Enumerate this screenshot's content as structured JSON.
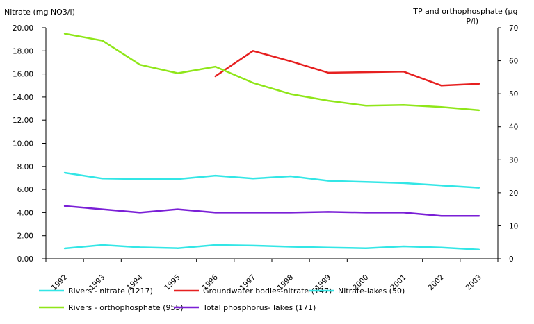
{
  "chart_data": {
    "type": "line",
    "title": "",
    "ylabel_left": "Nitrate (mg NO3/l)",
    "ylabel_right_lines": [
      "TP and orthophosphate (µg",
      "P/l)"
    ],
    "x": [
      "1992",
      "1993",
      "1994",
      "1995",
      "1996",
      "1997",
      "1998",
      "1999",
      "2000",
      "2001",
      "2002",
      "2003"
    ],
    "ylim_left": [
      0,
      20
    ],
    "ylim_right": [
      0,
      70
    ],
    "yticks_left": [
      "0.00",
      "2.00",
      "4.00",
      "6.00",
      "8.00",
      "10.00",
      "12.00",
      "14.00",
      "16.00",
      "18.00",
      "20.00"
    ],
    "yticks_right": [
      "0",
      "10",
      "20",
      "30",
      "40",
      "50",
      "60",
      "70"
    ],
    "grid": false,
    "legend_position": "bottom",
    "series": [
      {
        "name": "Rivers - nitrate (1217)",
        "axis": "left",
        "color": "#33e6e6",
        "values": [
          7.45,
          6.95,
          6.9,
          6.9,
          7.2,
          6.95,
          7.15,
          6.75,
          6.65,
          6.55,
          6.35,
          6.15
        ]
      },
      {
        "name": "Groundwater bodies-nitrate (147)",
        "axis": "left",
        "color": "#e62020",
        "values": [
          null,
          null,
          null,
          null,
          15.8,
          18.0,
          17.1,
          16.1,
          16.15,
          16.2,
          15.0,
          15.15
        ]
      },
      {
        "name": "Nitrate-lakes (50)",
        "axis": "left",
        "color": "#33e6e6",
        "values": [
          0.9,
          1.2,
          1.0,
          0.92,
          1.2,
          1.15,
          1.05,
          0.97,
          0.92,
          1.08,
          0.97,
          0.8
        ]
      },
      {
        "name": "Rivers - orthophosphate (955)",
        "axis": "right",
        "color": "#8fe619",
        "values": [
          68.2,
          66.1,
          58.8,
          56.2,
          58.2,
          53.3,
          49.9,
          47.9,
          46.4,
          46.6,
          46.0,
          45.0
        ]
      },
      {
        "name": "Total phosphorus- lakes (171)",
        "axis": "right",
        "color": "#7a1fd6",
        "values": [
          16.0,
          15.0,
          14.0,
          15.0,
          14.0,
          14.0,
          14.0,
          14.2,
          14.0,
          14.0,
          13.0,
          13.0
        ]
      }
    ]
  }
}
